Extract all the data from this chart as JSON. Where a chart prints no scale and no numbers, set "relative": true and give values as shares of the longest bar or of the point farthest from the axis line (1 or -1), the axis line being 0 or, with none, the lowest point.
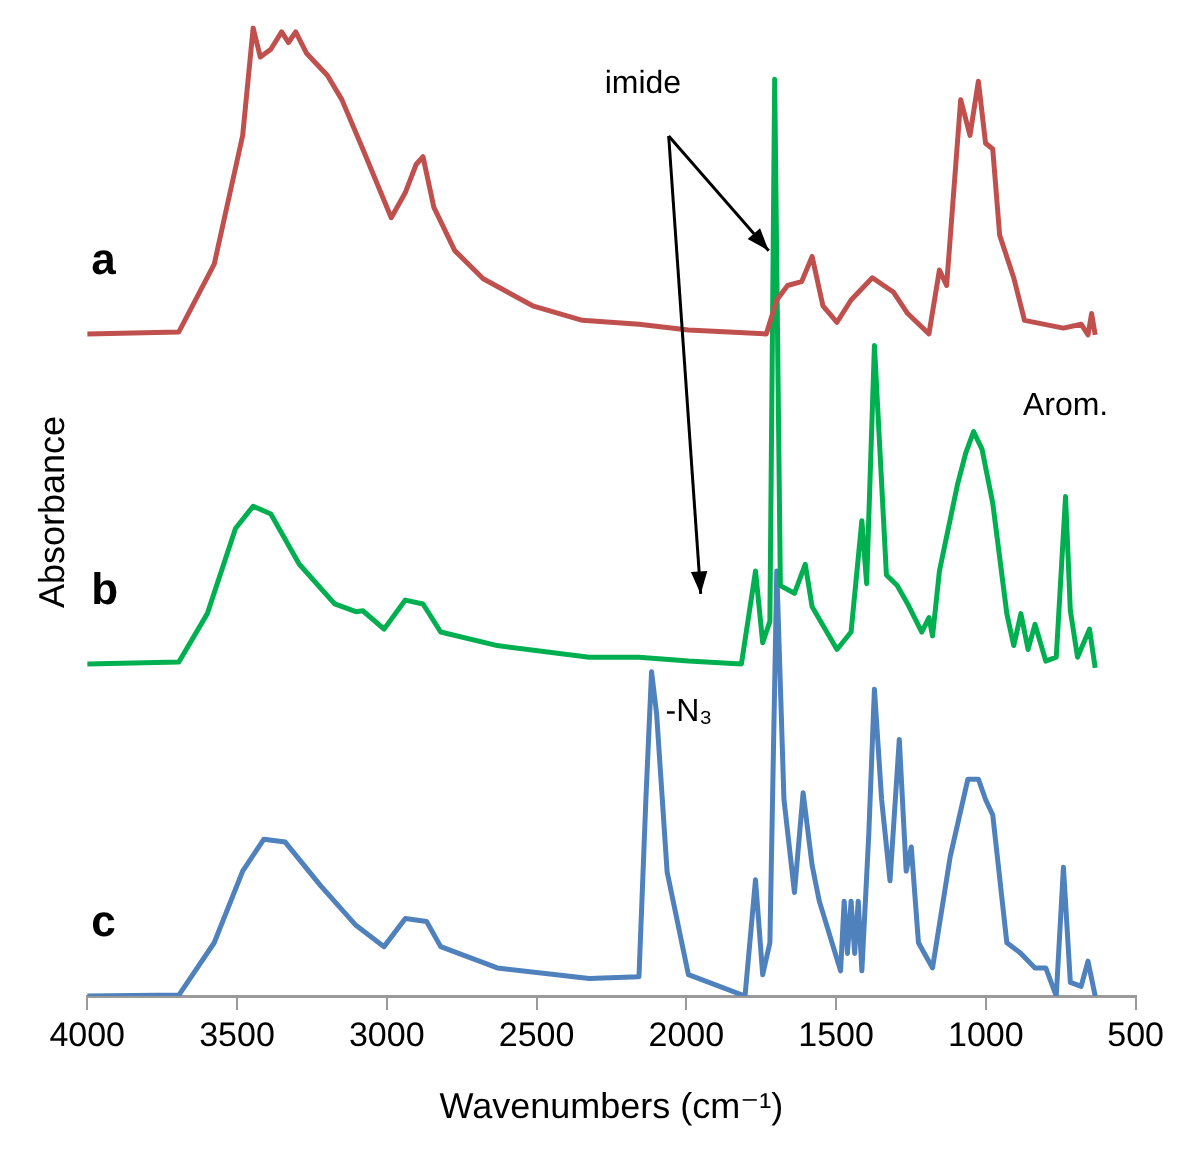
{
  "chart_data": {
    "type": "line",
    "relative": true,
    "xlabel": "Wavenumbers (cm⁻¹)",
    "ylabel": "Absorbance",
    "xlim": [
      4000,
      500
    ],
    "xticks": [
      4000,
      3500,
      3000,
      2500,
      2000,
      1500,
      1000,
      500
    ],
    "annotations": [
      {
        "text": "imide",
        "x": 1705,
        "y": 0.77
      },
      {
        "text": "-N₃",
        "x": 2116,
        "y": 0.335
      },
      {
        "text": "Arom.",
        "x": 734,
        "y": 0.516
      }
    ],
    "series": [
      {
        "name": "a",
        "color": "#c0504d",
        "x": [
          4000,
          3694,
          3576,
          3481,
          3446,
          3422,
          3387,
          3351,
          3328,
          3304,
          3268,
          3198,
          3150,
          3080,
          2985,
          2938,
          2902,
          2879,
          2843,
          2773,
          2678,
          2513,
          2347,
          2158,
          1993,
          1733,
          1698,
          1662,
          1615,
          1580,
          1544,
          1497,
          1450,
          1379,
          1308,
          1261,
          1190,
          1155,
          1131,
          1084,
          1053,
          1025,
          1001,
          977,
          954,
          907,
          871,
          741,
          682,
          659,
          647,
          635
        ],
        "values": [
          0.684,
          0.686,
          0.756,
          0.889,
          1.0,
          0.97,
          0.978,
          0.996,
          0.985,
          0.996,
          0.974,
          0.951,
          0.926,
          0.875,
          0.804,
          0.83,
          0.859,
          0.867,
          0.815,
          0.77,
          0.741,
          0.713,
          0.698,
          0.694,
          0.688,
          0.684,
          0.719,
          0.734,
          0.738,
          0.764,
          0.713,
          0.696,
          0.719,
          0.742,
          0.727,
          0.705,
          0.684,
          0.75,
          0.734,
          0.926,
          0.889,
          0.945,
          0.881,
          0.875,
          0.786,
          0.742,
          0.698,
          0.69,
          0.694,
          0.683,
          0.705,
          0.683
        ]
      },
      {
        "name": "b",
        "color": "#00b050",
        "x": [
          4000,
          3694,
          3599,
          3505,
          3446,
          3387,
          3292,
          3174,
          3103,
          3080,
          3009,
          2938,
          2879,
          2820,
          2631,
          2324,
          2158,
          1993,
          1816,
          1769,
          1745,
          1721,
          1705,
          1686,
          1639,
          1603,
          1580,
          1497,
          1450,
          1414,
          1398,
          1372,
          1332,
          1296,
          1261,
          1214,
          1190,
          1178,
          1155,
          1095,
          1067,
          1041,
          1013,
          977,
          930,
          907,
          883,
          859,
          836,
          800,
          765,
          734,
          718,
          694,
          654,
          635
        ],
        "values": [
          0.343,
          0.345,
          0.395,
          0.483,
          0.506,
          0.498,
          0.446,
          0.405,
          0.397,
          0.398,
          0.379,
          0.409,
          0.405,
          0.376,
          0.362,
          0.35,
          0.35,
          0.346,
          0.343,
          0.439,
          0.365,
          0.387,
          0.947,
          0.424,
          0.416,
          0.446,
          0.402,
          0.358,
          0.376,
          0.491,
          0.426,
          0.672,
          0.435,
          0.424,
          0.405,
          0.376,
          0.391,
          0.372,
          0.439,
          0.528,
          0.561,
          0.583,
          0.565,
          0.509,
          0.395,
          0.362,
          0.395,
          0.358,
          0.384,
          0.346,
          0.35,
          0.516,
          0.398,
          0.35,
          0.379,
          0.339
        ]
      },
      {
        "name": "c",
        "color": "#4f81bd",
        "x": [
          4000,
          3694,
          3576,
          3481,
          3410,
          3339,
          3221,
          3103,
          3009,
          2938,
          2867,
          2820,
          2631,
          2324,
          2158,
          2135,
          2116,
          2099,
          2064,
          1993,
          1804,
          1769,
          1745,
          1721,
          1698,
          1674,
          1639,
          1610,
          1580,
          1556,
          1485,
          1473,
          1462,
          1450,
          1438,
          1426,
          1414,
          1391,
          1372,
          1348,
          1320,
          1289,
          1266,
          1249,
          1225,
          1178,
          1119,
          1060,
          1025,
          1001,
          977,
          930,
          883,
          836,
          800,
          765,
          741,
          718,
          682,
          659,
          635
        ],
        "values": [
          0,
          0.001,
          0.055,
          0.129,
          0.162,
          0.159,
          0.114,
          0.073,
          0.051,
          0.08,
          0.077,
          0.051,
          0.029,
          0.018,
          0.02,
          0.203,
          0.335,
          0.291,
          0.128,
          0.022,
          0,
          0.12,
          0.022,
          0.055,
          0.439,
          0.203,
          0.107,
          0.21,
          0.135,
          0.098,
          0.026,
          0.098,
          0.044,
          0.098,
          0.044,
          0.098,
          0.026,
          0.166,
          0.317,
          0.203,
          0.119,
          0.265,
          0.129,
          0.154,
          0.055,
          0.029,
          0.144,
          0.224,
          0.224,
          0.203,
          0.187,
          0.055,
          0.044,
          0.029,
          0.029,
          0,
          0.133,
          0.014,
          0.01,
          0.036,
          0
        ]
      }
    ]
  }
}
